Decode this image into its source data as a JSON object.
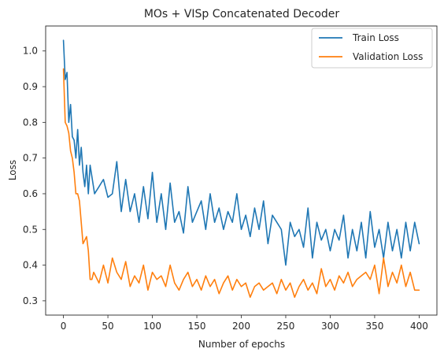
{
  "chart_data": {
    "type": "line",
    "title": "MOs + VISp Concatenated Decoder",
    "xlabel": "Number of epochs",
    "ylabel": "Loss",
    "xlim": [
      -20,
      420
    ],
    "ylim": [
      0.26,
      1.07
    ],
    "xticks": [
      0,
      50,
      100,
      150,
      200,
      250,
      300,
      350,
      400
    ],
    "xtick_labels": [
      "0",
      "50",
      "100",
      "150",
      "200",
      "250",
      "300",
      "350",
      "400"
    ],
    "yticks": [
      0.3,
      0.4,
      0.5,
      0.6,
      0.7,
      0.8,
      0.9,
      1.0
    ],
    "ytick_labels": [
      "0.3",
      "0.4",
      "0.5",
      "0.6",
      "0.7",
      "0.8",
      "0.9",
      "1.0"
    ],
    "grid": false,
    "legend_position": "top-right",
    "series": [
      {
        "name": "Train Loss",
        "color": "#1f77b4",
        "x": [
          0,
          2,
          4,
          6,
          8,
          10,
          12,
          14,
          16,
          18,
          20,
          22,
          24,
          26,
          28,
          30,
          35,
          40,
          45,
          50,
          55,
          60,
          65,
          70,
          75,
          80,
          85,
          90,
          95,
          100,
          105,
          110,
          115,
          120,
          125,
          130,
          135,
          140,
          145,
          150,
          155,
          160,
          165,
          170,
          175,
          180,
          185,
          190,
          195,
          200,
          205,
          210,
          215,
          220,
          225,
          230,
          235,
          240,
          245,
          250,
          255,
          260,
          265,
          270,
          275,
          280,
          285,
          290,
          295,
          300,
          305,
          310,
          315,
          320,
          325,
          330,
          335,
          340,
          345,
          350,
          355,
          360,
          365,
          370,
          375,
          380,
          385,
          390,
          395,
          400
        ],
        "values": [
          1.03,
          0.92,
          0.94,
          0.8,
          0.85,
          0.76,
          0.75,
          0.7,
          0.78,
          0.68,
          0.73,
          0.66,
          0.62,
          0.68,
          0.6,
          0.68,
          0.6,
          0.62,
          0.64,
          0.59,
          0.6,
          0.69,
          0.55,
          0.64,
          0.55,
          0.6,
          0.52,
          0.62,
          0.53,
          0.66,
          0.52,
          0.6,
          0.5,
          0.63,
          0.52,
          0.55,
          0.49,
          0.62,
          0.52,
          0.55,
          0.58,
          0.5,
          0.6,
          0.52,
          0.56,
          0.5,
          0.55,
          0.52,
          0.6,
          0.5,
          0.54,
          0.48,
          0.56,
          0.5,
          0.58,
          0.46,
          0.54,
          0.52,
          0.5,
          0.4,
          0.52,
          0.48,
          0.5,
          0.45,
          0.56,
          0.42,
          0.52,
          0.47,
          0.5,
          0.44,
          0.5,
          0.47,
          0.54,
          0.42,
          0.5,
          0.44,
          0.52,
          0.42,
          0.55,
          0.45,
          0.5,
          0.42,
          0.52,
          0.44,
          0.5,
          0.42,
          0.52,
          0.44,
          0.52,
          0.46
        ]
      },
      {
        "name": "Validation Loss",
        "color": "#ff7f0e",
        "x": [
          0,
          2,
          4,
          6,
          8,
          10,
          12,
          14,
          16,
          18,
          20,
          22,
          24,
          26,
          28,
          30,
          32,
          34,
          36,
          38,
          40,
          45,
          50,
          55,
          60,
          65,
          70,
          75,
          80,
          85,
          90,
          95,
          100,
          105,
          110,
          115,
          120,
          125,
          130,
          135,
          140,
          145,
          150,
          155,
          160,
          165,
          170,
          175,
          180,
          185,
          190,
          195,
          200,
          205,
          210,
          215,
          220,
          225,
          230,
          235,
          240,
          245,
          250,
          255,
          260,
          265,
          270,
          275,
          280,
          285,
          290,
          295,
          300,
          305,
          310,
          315,
          320,
          325,
          330,
          335,
          340,
          345,
          350,
          355,
          360,
          365,
          370,
          375,
          380,
          385,
          390,
          395,
          400
        ],
        "values": [
          0.95,
          0.8,
          0.79,
          0.77,
          0.72,
          0.7,
          0.66,
          0.6,
          0.6,
          0.58,
          0.52,
          0.46,
          0.47,
          0.48,
          0.44,
          0.36,
          0.36,
          0.38,
          0.37,
          0.36,
          0.35,
          0.4,
          0.35,
          0.42,
          0.38,
          0.36,
          0.41,
          0.34,
          0.37,
          0.35,
          0.4,
          0.33,
          0.38,
          0.36,
          0.37,
          0.34,
          0.4,
          0.35,
          0.33,
          0.36,
          0.38,
          0.34,
          0.36,
          0.33,
          0.37,
          0.34,
          0.36,
          0.32,
          0.35,
          0.37,
          0.33,
          0.36,
          0.34,
          0.35,
          0.31,
          0.34,
          0.35,
          0.33,
          0.34,
          0.35,
          0.32,
          0.36,
          0.33,
          0.35,
          0.31,
          0.34,
          0.36,
          0.33,
          0.35,
          0.32,
          0.39,
          0.34,
          0.36,
          0.33,
          0.37,
          0.35,
          0.38,
          0.34,
          0.36,
          0.37,
          0.38,
          0.36,
          0.4,
          0.32,
          0.42,
          0.34,
          0.38,
          0.35,
          0.4,
          0.34,
          0.38,
          0.33,
          0.33
        ]
      }
    ]
  }
}
